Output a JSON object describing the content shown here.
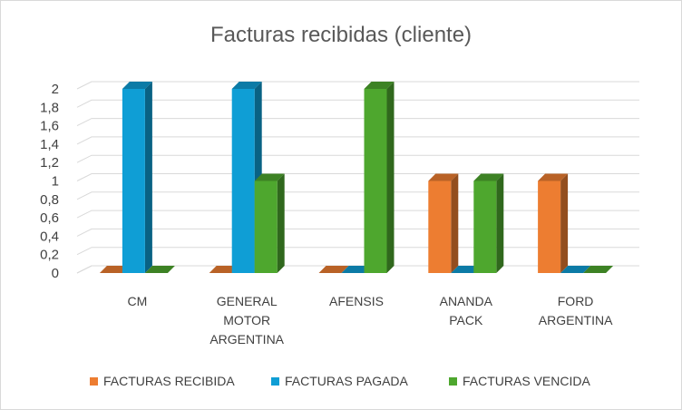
{
  "chart_data": {
    "type": "bar",
    "title": "Facturas recibidas (cliente)",
    "categories": [
      [
        "CM"
      ],
      [
        "GENERAL",
        "MOTOR",
        "ARGENTINA"
      ],
      [
        "AFENSIS"
      ],
      [
        "ANANDA",
        "PACK"
      ],
      [
        "FORD",
        "ARGENTINA"
      ]
    ],
    "series": [
      {
        "name": "FACTURAS RECIBIDA",
        "color": "#ED7D31",
        "values": [
          0,
          0,
          0,
          1,
          1
        ]
      },
      {
        "name": "FACTURAS PAGADA",
        "color": "#0F9ED5",
        "values": [
          2,
          2,
          0,
          0,
          0
        ]
      },
      {
        "name": "FACTURAS VENCIDA",
        "color": "#4EA72E",
        "values": [
          0,
          1,
          2,
          1,
          0
        ]
      }
    ],
    "yticks": [
      "0",
      "0,2",
      "0,4",
      "0,6",
      "0,8",
      "1",
      "1,2",
      "1,4",
      "1,6",
      "1,8",
      "2"
    ],
    "ylim": [
      0,
      2
    ],
    "grid": true,
    "legend": "bottom",
    "style": "3d-clustered-column"
  }
}
